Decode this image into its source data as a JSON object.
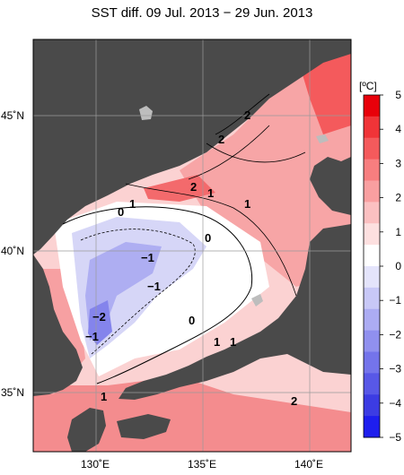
{
  "title": "SST diff. 09 Jul. 2013 − 29 Jun. 2013",
  "lat_labels": [
    "45˚N",
    "40˚N",
    "35˚N"
  ],
  "lon_labels": [
    "130˚E",
    "135˚E",
    "140˚E"
  ],
  "colorbar": {
    "unit": "[ºC]",
    "ticks": [
      "5",
      "4",
      "3",
      "2",
      "1",
      "0",
      "−1",
      "−2",
      "−3",
      "−4",
      "−5"
    ],
    "colors": [
      "#e8000a",
      "#f03438",
      "#f45a5c",
      "#f77e7f",
      "#f99fa0",
      "#fbc0c1",
      "#fde0e0",
      "#ffffff",
      "#e4e4fb",
      "#c8c8f7",
      "#acacf3",
      "#9090ef",
      "#7474eb",
      "#5858e7",
      "#3c3ce3",
      "#1e1eee"
    ]
  },
  "contour_labels": [
    "2",
    "2",
    "2",
    "1",
    "1",
    "0",
    "1",
    "0",
    "−1",
    "−1",
    "−2",
    "−1",
    "0",
    "1",
    "1",
    "1",
    "2"
  ],
  "colors": {
    "land": "#4a4a4a",
    "frame": "#000000",
    "warm": "#f59a9c",
    "cool": "#c6c6f4"
  }
}
